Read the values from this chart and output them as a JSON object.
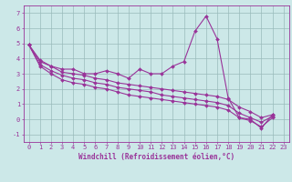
{
  "xlabel": "Windchill (Refroidissement éolien,°C)",
  "bg_color": "#cce8e8",
  "line_color": "#993399",
  "grid_color": "#99bbbb",
  "xlim": [
    -0.5,
    23.5
  ],
  "ylim": [
    -1.5,
    7.5
  ],
  "xticks": [
    0,
    1,
    2,
    3,
    4,
    5,
    6,
    7,
    8,
    9,
    10,
    11,
    12,
    13,
    14,
    15,
    16,
    17,
    18,
    19,
    20,
    21,
    22,
    23
  ],
  "yticks": [
    -1,
    0,
    1,
    2,
    3,
    4,
    5,
    6,
    7
  ],
  "series": [
    [
      4.9,
      3.9,
      3.5,
      3.3,
      3.3,
      3.0,
      3.0,
      3.2,
      3.0,
      2.7,
      3.3,
      3.0,
      3.0,
      3.5,
      3.8,
      5.8,
      6.8,
      5.3,
      1.4,
      0.1,
      0.0,
      -0.6,
      0.3
    ],
    [
      4.9,
      3.8,
      3.5,
      3.1,
      3.0,
      2.9,
      2.7,
      2.6,
      2.4,
      2.3,
      2.2,
      2.1,
      2.0,
      1.9,
      1.8,
      1.7,
      1.6,
      1.5,
      1.3,
      0.8,
      0.5,
      0.1,
      0.3
    ],
    [
      4.9,
      3.6,
      3.2,
      2.9,
      2.7,
      2.6,
      2.4,
      2.3,
      2.1,
      2.0,
      1.9,
      1.8,
      1.6,
      1.5,
      1.4,
      1.3,
      1.2,
      1.1,
      0.9,
      0.4,
      0.1,
      -0.2,
      0.2
    ],
    [
      4.9,
      3.5,
      3.0,
      2.6,
      2.4,
      2.3,
      2.1,
      2.0,
      1.8,
      1.6,
      1.5,
      1.4,
      1.3,
      1.2,
      1.1,
      1.0,
      0.9,
      0.8,
      0.6,
      0.1,
      -0.1,
      -0.5,
      0.1
    ]
  ],
  "marker": "D",
  "markersize": 2,
  "linewidth": 0.8,
  "label_fontsize": 5.5,
  "tick_fontsize": 5.0
}
